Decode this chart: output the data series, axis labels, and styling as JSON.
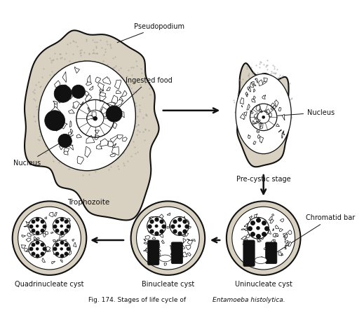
{
  "title": "Fig. 174. Stages of life cycle of ",
  "title_italic": "Entamoeba histolytica.",
  "background_color": "#ffffff",
  "labels": {
    "pseudopodium": "Pseudopodium",
    "ingested_food": "Ingested food",
    "nucleus_trophozoite": "Nucleus",
    "trophozoite": "Trophozoite",
    "nucleus_precystic": "Nucleus",
    "precystic": "Pre-cystic stage",
    "chromatid_bar": "Chromatid bar",
    "uninucleate": "Uninucleate cyst",
    "binucleate": "Binucleate cyst",
    "quadrinucleate": "Quadrinucleate cyst"
  },
  "arrow_color": "#111111",
  "line_color": "#111111",
  "text_color": "#111111",
  "cell_fill": "#f0ece0",
  "ecto_fill": "#d8d0c0",
  "endo_fill": "#ffffff",
  "dark_fill": "#111111",
  "stipple_color": "#999999"
}
